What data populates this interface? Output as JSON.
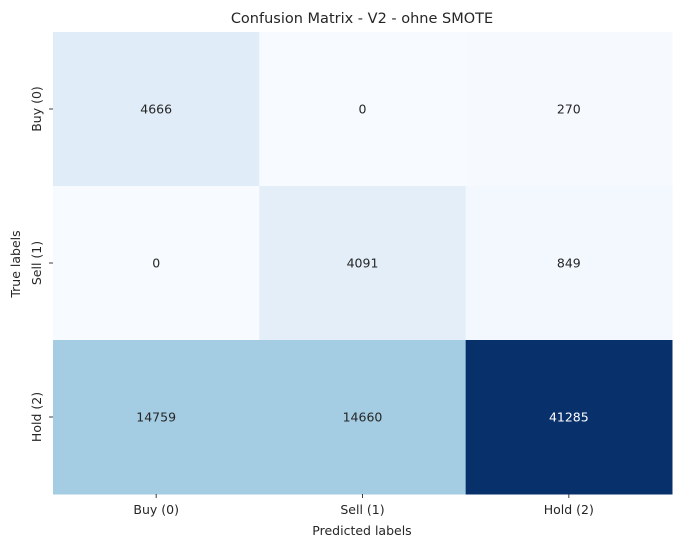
{
  "chart_data": {
    "type": "heatmap",
    "title": "Confusion Matrix - V2 - ohne SMOTE",
    "xlabel": "Predicted labels",
    "ylabel": "True labels",
    "x_categories": [
      "Buy (0)",
      "Sell (1)",
      "Hold (2)"
    ],
    "y_categories": [
      "Buy (0)",
      "Sell (1)",
      "Hold (2)"
    ],
    "values": [
      [
        4666,
        0,
        270
      ],
      [
        0,
        4091,
        849
      ],
      [
        14759,
        14660,
        41285
      ]
    ],
    "colormap": "Blues",
    "colorbar": false
  }
}
